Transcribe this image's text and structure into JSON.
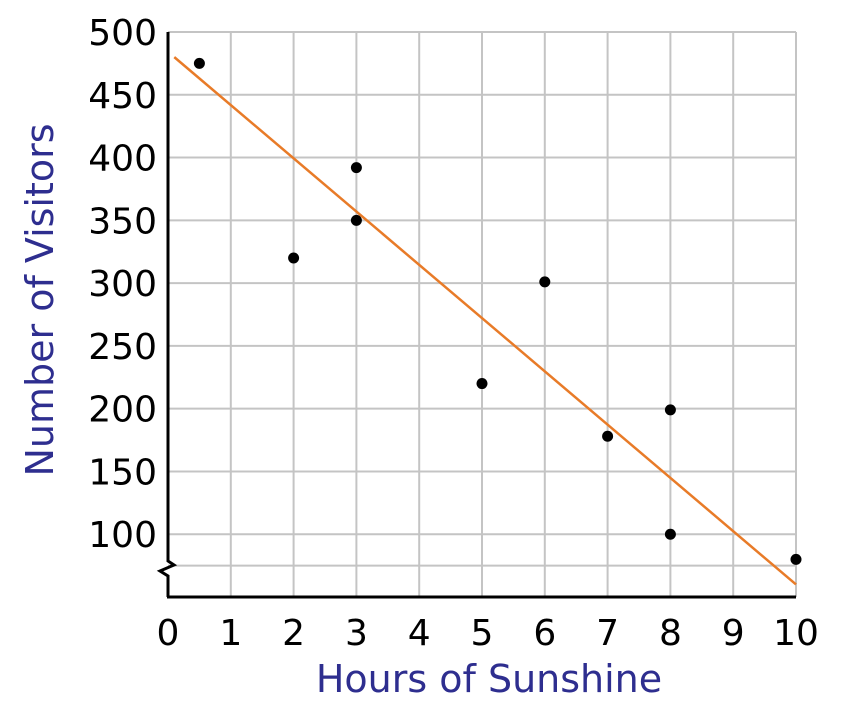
{
  "chart_data": {
    "type": "scatter",
    "xlabel": "Hours of Sunshine",
    "ylabel": "Number of Visitors",
    "xlim": [
      0,
      10
    ],
    "ylim": [
      50,
      500
    ],
    "x_ticks": [
      0,
      1,
      2,
      3,
      4,
      5,
      6,
      7,
      8,
      9,
      10
    ],
    "y_ticks": [
      100,
      150,
      200,
      250,
      300,
      350,
      400,
      450,
      500
    ],
    "y_axis_break": true,
    "grid": true,
    "points": [
      {
        "x": 0.5,
        "y": 475
      },
      {
        "x": 2,
        "y": 320
      },
      {
        "x": 3,
        "y": 392
      },
      {
        "x": 3,
        "y": 350
      },
      {
        "x": 5,
        "y": 220
      },
      {
        "x": 6,
        "y": 301
      },
      {
        "x": 7,
        "y": 178
      },
      {
        "x": 8,
        "y": 199
      },
      {
        "x": 8,
        "y": 100
      },
      {
        "x": 10,
        "y": 80
      }
    ],
    "trend_line": {
      "x1": 0.1,
      "y1": 480,
      "x2": 10,
      "y2": 60
    },
    "colors": {
      "points": "#000000",
      "trend_line": "#e87b28",
      "axis_titles": "#2e2e8f",
      "grid": "#c4c4c4",
      "axes": "#000000"
    }
  }
}
